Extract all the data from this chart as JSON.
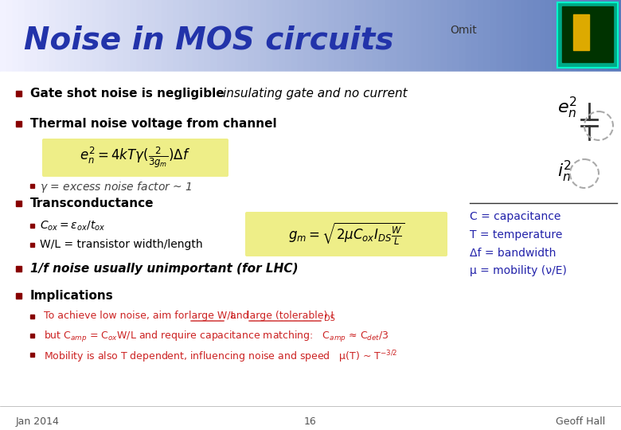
{
  "title": "Noise in MOS circuits",
  "omit_label": "Omit",
  "bg_gradient_left": "#ffffff",
  "bg_gradient_right": "#6688cc",
  "header_bg_left": "#aabbdd",
  "header_bg_right": "#5577bb",
  "title_color": "#3344aa",
  "body_bg": "#ffffff",
  "bullet_color": "#880000",
  "text_color": "#000000",
  "dark_blue": "#2222aa",
  "red_color": "#cc2222",
  "formula_bg": "#eeee88",
  "footer_left": "Jan 2014",
  "footer_center": "16",
  "footer_right": "Geoff Hall",
  "line1_bold": "Gate shot noise is negligible",
  "line1_italic": "insulating gate and no current",
  "line2": "Thermal noise voltage from channel",
  "formula1": "$e_n^2 = 4kT\\gamma(\\frac{2}{3g_m})\\Delta f$",
  "gamma_note": "$\\gamma$ = excess noise factor ~ 1",
  "line3": "Transconductance",
  "sub1": "$C_{ox} = \\varepsilon_{ox}/t_{ox}$",
  "sub2": "W/L = transistor width/length",
  "formula2": "$g_m = \\sqrt{2\\mu C_{ox} I_{DS} \\frac{W}{L}}$",
  "line4": "1/f noise usually unimportant (for LHC)",
  "line5": "Implications",
  "imp1": "To achieve low noise, aim for large W/L and large (tolerable) I",
  "imp1_sub": "DS",
  "imp2_pre": "but C",
  "imp2_sub1": "amp",
  "imp2_mid": " = C",
  "imp2_sub2": "ox",
  "imp2_mid2": "W/L and require capacitance matching:   C",
  "imp2_sub3": "amp",
  "imp2_end": " ≈ C",
  "imp2_sub4": "det",
  "imp2_end2": "/3",
  "imp3": "Mobility is also T dependent, influencing noise and speed   μ(T) ~ T",
  "imp3_sup": "-3/2",
  "right1": "$e_n^2$",
  "right2": "$i_n^2$",
  "right_text": "C = capacitance\nT = temperature\nΔf = bandwidth\nμ = mobility (ν/E)"
}
